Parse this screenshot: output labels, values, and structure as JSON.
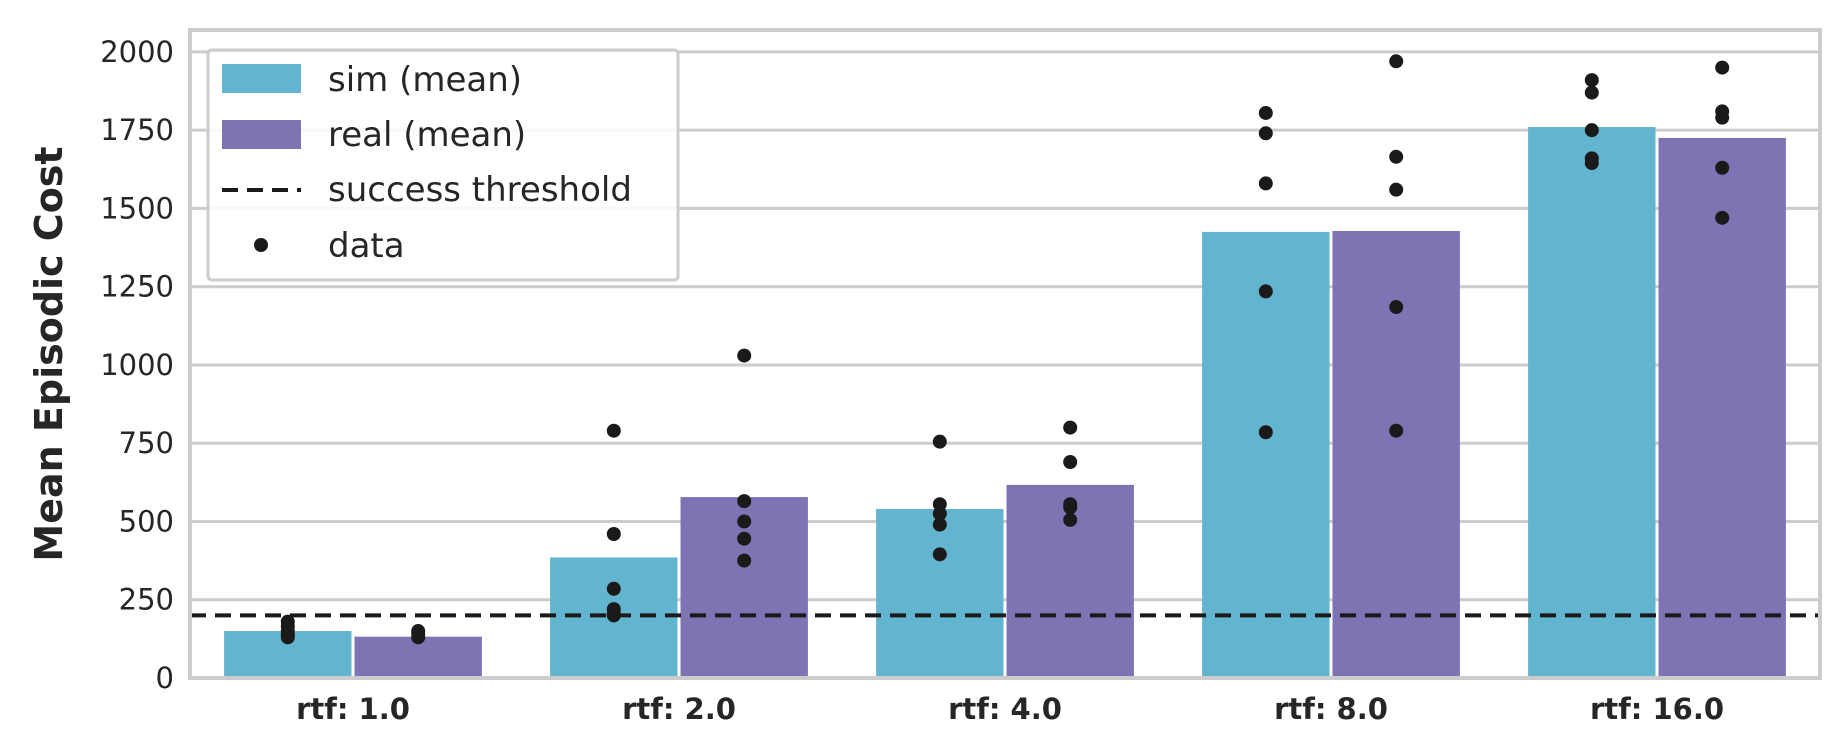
{
  "chart_data": {
    "type": "bar",
    "categories": [
      "rtf: 1.0",
      "rtf: 2.0",
      "rtf: 4.0",
      "rtf: 8.0",
      "rtf: 16.0"
    ],
    "ylabel": "Mean Episodic Cost",
    "xlabel": "",
    "ylim": [
      0,
      2070
    ],
    "yticks": [
      0,
      250,
      500,
      750,
      1000,
      1250,
      1500,
      1750,
      2000
    ],
    "grid": true,
    "legend_position": "top-left",
    "series": [
      {
        "name": "sim (mean)",
        "color": "#63b4cf",
        "values": [
          150,
          385,
          540,
          1425,
          1760
        ],
        "points": [
          [
            180,
            165,
            150,
            140,
            130
          ],
          [
            790,
            460,
            285,
            220,
            205,
            200
          ],
          [
            755,
            555,
            525,
            490,
            395
          ],
          [
            1805,
            1740,
            1580,
            1235,
            785
          ],
          [
            1910,
            1870,
            1750,
            1660,
            1645
          ]
        ]
      },
      {
        "name": "real (mean)",
        "color": "#8073b4",
        "values": [
          132,
          578,
          617,
          1428,
          1725
        ],
        "points": [
          [
            150,
            140,
            130
          ],
          [
            1030,
            565,
            500,
            445,
            375
          ],
          [
            800,
            690,
            555,
            545,
            505
          ],
          [
            1970,
            1665,
            1560,
            1185,
            790
          ],
          [
            1950,
            1810,
            1790,
            1630,
            1470
          ]
        ]
      }
    ],
    "reference_lines": [
      {
        "name": "success threshold",
        "value": 200,
        "style": "dashed",
        "color": "#1a1a1a"
      }
    ],
    "scatter_legend": {
      "name": "data",
      "color": "#1a1a1a"
    }
  }
}
